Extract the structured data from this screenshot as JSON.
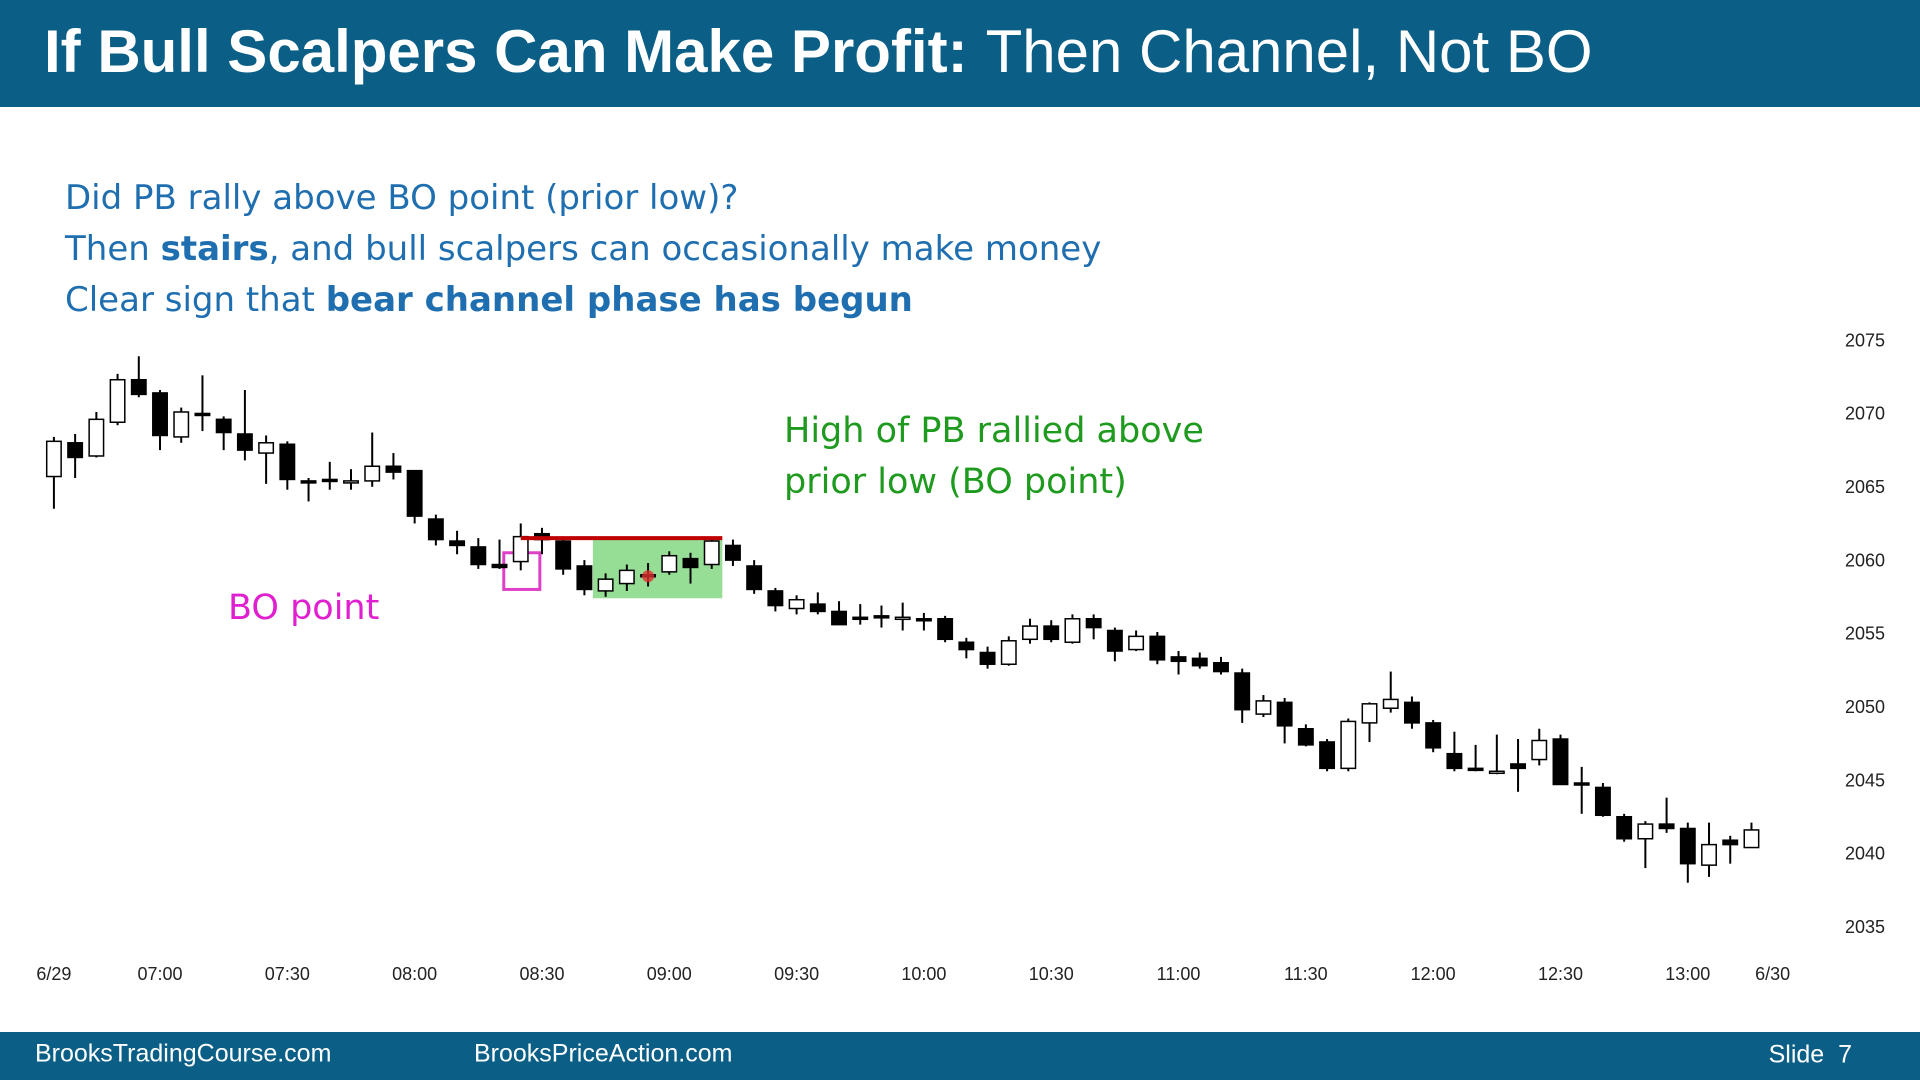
{
  "header": {
    "title_bold": "If Bull Scalpers Can Make Profit:",
    "title_rest": "Then Channel, Not BO"
  },
  "notes": [
    [
      {
        "text": "Did PB rally above BO point (prior low)?",
        "bold": false
      }
    ],
    [
      {
        "text": "Then ",
        "bold": false
      },
      {
        "text": "stairs",
        "bold": true
      },
      {
        "text": ", and bull scalpers can occasionally make money",
        "bold": false
      }
    ],
    [
      {
        "text": "Clear sign that ",
        "bold": false
      },
      {
        "text": "bear channel phase has begun",
        "bold": true
      }
    ]
  ],
  "footer": {
    "left": "BrooksTradingCourse.com",
    "middle": "BrooksPriceAction.com",
    "right": "Slide  7"
  },
  "chart_data": {
    "type": "candlestick",
    "up_color": "#ffffff",
    "down_color": "#000000",
    "edge_color": "#000000",
    "xlim": [
      -1,
      82
    ],
    "xticks": [
      {
        "value": 0,
        "label": "6/29"
      },
      {
        "value": 5,
        "label": "07:00"
      },
      {
        "value": 11,
        "label": "07:30"
      },
      {
        "value": 17,
        "label": "08:00"
      },
      {
        "value": 23,
        "label": "08:30"
      },
      {
        "value": 29,
        "label": "09:00"
      },
      {
        "value": 35,
        "label": "09:30"
      },
      {
        "value": 41,
        "label": "10:00"
      },
      {
        "value": 47,
        "label": "10:30"
      },
      {
        "value": 53,
        "label": "11:00"
      },
      {
        "value": 59,
        "label": "11:30"
      },
      {
        "value": 65,
        "label": "12:00"
      },
      {
        "value": 71,
        "label": "12:30"
      },
      {
        "value": 77,
        "label": "13:00"
      },
      {
        "value": 81,
        "label": "6/30"
      }
    ],
    "ylim": [
      2035,
      2075
    ],
    "yticks": [
      2035,
      2040,
      2045,
      2050,
      2055,
      2060,
      2065,
      2070,
      2075
    ],
    "open": [
      2065.8,
      2068.1,
      2067.2,
      2069.5,
      2072.4,
      2071.5,
      2068.5,
      2070.1,
      2069.7,
      2068.7,
      2067.4,
      2068.0,
      2065.5,
      2065.6,
      2065.5,
      2065.5,
      2066.5,
      2066.2,
      2062.9,
      2061.4,
      2061.0,
      2059.8,
      2060.0,
      2061.9,
      2061.4,
      2059.7,
      2058.0,
      2058.5,
      2059.1,
      2059.3,
      2060.2,
      2059.8,
      2061.1,
      2059.7,
      2058.0,
      2056.8,
      2057.1,
      2056.6,
      2056.2,
      2056.3,
      2056.2,
      2056.1,
      2056.1,
      2054.5,
      2053.8,
      2053.0,
      2054.7,
      2055.6,
      2054.5,
      2056.1,
      2055.3,
      2054.0,
      2054.9,
      2053.5,
      2053.4,
      2053.1,
      2052.4,
      2049.6,
      2050.4,
      2048.6,
      2047.7,
      2045.9,
      2049.0,
      2050.0,
      2050.4,
      2049.0,
      2046.9,
      2045.9,
      2045.7,
      2046.2,
      2046.5,
      2047.9,
      2044.9,
      2044.6,
      2042.6,
      2041.1,
      2042.1,
      2041.8,
      2039.3,
      2041.0,
      2040.5
    ],
    "high": [
      2068.5,
      2068.7,
      2070.2,
      2072.8,
      2074.0,
      2071.7,
      2070.5,
      2072.7,
      2069.9,
      2071.7,
      2068.6,
      2068.2,
      2065.7,
      2066.8,
      2066.3,
      2068.8,
      2067.4,
      2066.2,
      2063.2,
      2062.1,
      2061.6,
      2061.5,
      2062.6,
      2062.3,
      2061.6,
      2060.1,
      2059.2,
      2059.8,
      2059.9,
      2060.7,
      2060.6,
      2061.6,
      2061.5,
      2060.1,
      2058.2,
      2057.7,
      2057.9,
      2057.3,
      2057.1,
      2057.0,
      2057.2,
      2056.5,
      2056.3,
      2054.8,
      2054.2,
      2054.9,
      2056.1,
      2056.0,
      2056.4,
      2056.4,
      2055.5,
      2055.3,
      2055.2,
      2053.9,
      2053.8,
      2053.5,
      2052.7,
      2050.9,
      2050.7,
      2048.9,
      2047.9,
      2049.3,
      2050.4,
      2052.5,
      2050.8,
      2049.2,
      2048.4,
      2047.5,
      2048.2,
      2047.9,
      2048.6,
      2048.2,
      2046.0,
      2044.9,
      2042.8,
      2042.3,
      2043.9,
      2042.2,
      2042.2,
      2041.3,
      2042.2
    ],
    "low": [
      2063.6,
      2065.7,
      2067.1,
      2069.3,
      2071.2,
      2067.6,
      2068.1,
      2068.9,
      2067.6,
      2066.9,
      2065.3,
      2064.9,
      2064.1,
      2064.9,
      2064.9,
      2065.1,
      2065.6,
      2062.6,
      2061.1,
      2060.5,
      2059.5,
      2059.5,
      2059.4,
      2060.5,
      2059.1,
      2057.7,
      2057.6,
      2058.0,
      2058.3,
      2059.1,
      2058.5,
      2059.5,
      2059.7,
      2057.8,
      2056.6,
      2056.4,
      2056.4,
      2055.7,
      2055.7,
      2055.5,
      2055.3,
      2055.3,
      2054.5,
      2053.4,
      2052.7,
      2052.9,
      2054.4,
      2054.5,
      2054.4,
      2054.7,
      2053.2,
      2053.9,
      2053.0,
      2052.3,
      2052.7,
      2052.3,
      2049.0,
      2049.4,
      2047.6,
      2047.4,
      2045.7,
      2045.7,
      2047.7,
      2049.7,
      2048.6,
      2047.0,
      2045.7,
      2045.7,
      2045.5,
      2044.3,
      2046.1,
      2044.8,
      2042.8,
      2042.6,
      2040.9,
      2039.1,
      2041.5,
      2038.1,
      2038.5,
      2039.4,
      2040.5
    ],
    "close": [
      2068.2,
      2067.1,
      2069.7,
      2072.4,
      2071.4,
      2068.6,
      2070.2,
      2070.0,
      2068.8,
      2067.6,
      2068.1,
      2065.6,
      2065.4,
      2065.5,
      2065.5,
      2066.5,
      2066.1,
      2063.1,
      2061.5,
      2061.1,
      2059.8,
      2059.6,
      2061.7,
      2061.5,
      2059.5,
      2058.1,
      2058.8,
      2059.4,
      2059.0,
      2060.4,
      2059.6,
      2061.4,
      2060.1,
      2058.1,
      2057.0,
      2057.4,
      2056.6,
      2055.7,
      2056.1,
      2056.2,
      2056.2,
      2056.0,
      2054.7,
      2054.0,
      2053.0,
      2054.6,
      2055.6,
      2054.7,
      2056.1,
      2055.5,
      2053.9,
      2054.9,
      2053.3,
      2053.2,
      2052.9,
      2052.5,
      2049.9,
      2050.5,
      2048.8,
      2047.5,
      2045.9,
      2049.1,
      2050.3,
      2050.6,
      2049.0,
      2047.3,
      2045.9,
      2045.8,
      2045.7,
      2045.9,
      2047.8,
      2044.8,
      2044.8,
      2042.7,
      2041.1,
      2042.1,
      2041.8,
      2039.4,
      2040.7,
      2040.7,
      2041.7
    ],
    "highlights": [
      {
        "kind": "rect",
        "x": [
          25.4,
          31.5
        ],
        "y": [
          2057.5,
          2061.5
        ],
        "color": "#84d884",
        "filled": true
      },
      {
        "kind": "rect",
        "x": [
          21.2,
          22.9
        ],
        "y": [
          2058.1,
          2060.6
        ],
        "color": "#e040c8",
        "filled": false
      },
      {
        "kind": "line",
        "x": [
          22,
          31.5
        ],
        "y": [
          2061.6,
          2061.6
        ],
        "color": "#c00000",
        "filled": false
      },
      {
        "kind": "dot",
        "x": [
          28,
          28
        ],
        "y": [
          2059.0,
          2059.0
        ],
        "color": "#e03030",
        "filled": true
      }
    ],
    "annotations": [
      {
        "lines": [
          "High of PB rallied above",
          "prior low (BO point)"
        ],
        "color": "#1e9a1e"
      },
      {
        "lines": [
          "BO point"
        ],
        "color": "#e020d0"
      }
    ]
  }
}
